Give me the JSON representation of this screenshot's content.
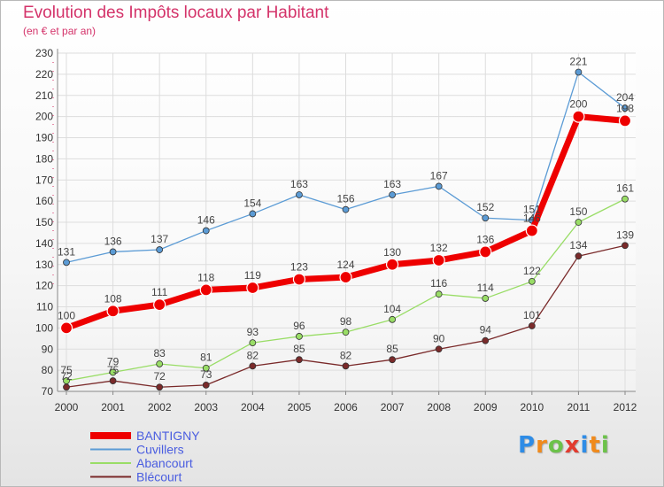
{
  "title": "Evolution des Impôts locaux par Habitant",
  "subtitle": "(en € et par an)",
  "brand": {
    "text": "Proxiti",
    "letters": [
      "P",
      "r",
      "o",
      "x",
      "i",
      "t",
      "i"
    ],
    "colors": [
      "#2e8ce6",
      "#f08a1c",
      "#6cc24a",
      "#e23a2e",
      "#2e8ce6",
      "#f08a1c",
      "#6cc24a"
    ]
  },
  "chart_data": {
    "type": "line",
    "title": "Evolution des Impôts locaux par Habitant",
    "subtitle": "(en € et par an)",
    "xlabel": "",
    "ylabel": "",
    "categories": [
      "2000",
      "2001",
      "2002",
      "2003",
      "2004",
      "2005",
      "2006",
      "2007",
      "2008",
      "2009",
      "2010",
      "2011",
      "2012"
    ],
    "ylim": [
      70,
      230
    ],
    "yticks": [
      70,
      80,
      90,
      100,
      110,
      120,
      130,
      140,
      150,
      160,
      170,
      180,
      190,
      200,
      210,
      220,
      230
    ],
    "grid": true,
    "legend_position": "bottom-left",
    "series": [
      {
        "name": "BANTIGNY",
        "color": "#ee0000",
        "values": [
          100,
          108,
          111,
          118,
          119,
          123,
          124,
          130,
          132,
          136,
          146,
          200,
          198
        ],
        "labels": [
          "100",
          "108",
          "111",
          "118",
          "119",
          "123",
          "124",
          "130",
          "132",
          "136",
          "146",
          "200",
          "198"
        ]
      },
      {
        "name": "Cuvillers",
        "color": "#5b9bd5",
        "values": [
          131,
          136,
          137,
          146,
          154,
          163,
          156,
          163,
          167,
          152,
          151,
          221,
          204
        ],
        "labels": [
          "131",
          "136",
          "137",
          "146",
          "154",
          "163",
          "156",
          "163",
          "167",
          "152",
          "151",
          "221",
          "204"
        ]
      },
      {
        "name": "Abancourt",
        "color": "#99dd66",
        "values": [
          75,
          79,
          83,
          81,
          93,
          96,
          98,
          104,
          116,
          114,
          122,
          150,
          161
        ],
        "labels": [
          "75",
          "79",
          "83",
          "81",
          "93",
          "96",
          "98",
          "104",
          "116",
          "114",
          "122",
          "150",
          "161"
        ]
      },
      {
        "name": "Blécourt",
        "color": "#7a2a2a",
        "values": [
          72,
          75,
          72,
          73,
          82,
          85,
          82,
          85,
          90,
          94,
          101,
          134,
          139
        ],
        "labels": [
          "72",
          "75",
          "72",
          "73",
          "82",
          "85",
          "82",
          "85",
          "90",
          "94",
          "101",
          "134",
          "139"
        ]
      }
    ]
  }
}
